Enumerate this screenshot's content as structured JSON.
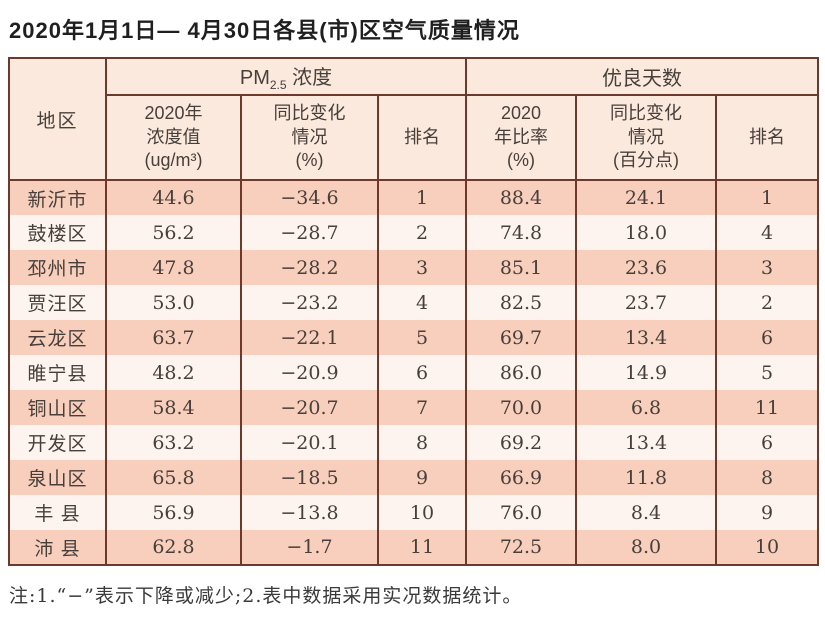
{
  "title": "2020年1月1日— 4月30日各县(市)区空气质量情况",
  "colors": {
    "border": "#6b3a2c",
    "header_bg": "#fae9dc",
    "row_odd_bg": "#f8cebc",
    "row_even_bg": "#fdf3ef",
    "text": "#473f3a"
  },
  "table": {
    "header": {
      "region": "地区",
      "pm_group_prefix": "PM",
      "pm_group_sub": "2.5",
      "pm_group_suffix": " 浓度",
      "good_group": "优良天数",
      "sub": {
        "pm_value": "2020年\n浓度值\n(ug/m³)",
        "pm_change": "同比变化\n情况\n(%)",
        "pm_rank": "排名",
        "good_ratio": "2020\n年比率\n(%)",
        "good_change": "同比变化\n情况\n(百分点)",
        "good_rank": "排名"
      }
    },
    "rows": [
      {
        "region": "新沂市",
        "pm_value": "44.6",
        "pm_change": "−34.6",
        "pm_rank": "1",
        "good_ratio": "88.4",
        "good_change": "24.1",
        "good_rank": "1"
      },
      {
        "region": "鼓楼区",
        "pm_value": "56.2",
        "pm_change": "−28.7",
        "pm_rank": "2",
        "good_ratio": "74.8",
        "good_change": "18.0",
        "good_rank": "4"
      },
      {
        "region": "邳州市",
        "pm_value": "47.8",
        "pm_change": "−28.2",
        "pm_rank": "3",
        "good_ratio": "85.1",
        "good_change": "23.6",
        "good_rank": "3"
      },
      {
        "region": "贾汪区",
        "pm_value": "53.0",
        "pm_change": "−23.2",
        "pm_rank": "4",
        "good_ratio": "82.5",
        "good_change": "23.7",
        "good_rank": "2"
      },
      {
        "region": "云龙区",
        "pm_value": "63.7",
        "pm_change": "−22.1",
        "pm_rank": "5",
        "good_ratio": "69.7",
        "good_change": "13.4",
        "good_rank": "6"
      },
      {
        "region": "睢宁县",
        "pm_value": "48.2",
        "pm_change": "−20.9",
        "pm_rank": "6",
        "good_ratio": "86.0",
        "good_change": "14.9",
        "good_rank": "5"
      },
      {
        "region": "铜山区",
        "pm_value": "58.4",
        "pm_change": "−20.7",
        "pm_rank": "7",
        "good_ratio": "70.0",
        "good_change": "6.8",
        "good_rank": "11"
      },
      {
        "region": "开发区",
        "pm_value": "63.2",
        "pm_change": "−20.1",
        "pm_rank": "8",
        "good_ratio": "69.2",
        "good_change": "13.4",
        "good_rank": "6"
      },
      {
        "region": "泉山区",
        "pm_value": "65.8",
        "pm_change": "−18.5",
        "pm_rank": "9",
        "good_ratio": "66.9",
        "good_change": "11.8",
        "good_rank": "8"
      },
      {
        "region": "丰 县",
        "pm_value": "56.9",
        "pm_change": "−13.8",
        "pm_rank": "10",
        "good_ratio": "76.0",
        "good_change": "8.4",
        "good_rank": "9"
      },
      {
        "region": "沛 县",
        "pm_value": "62.8",
        "pm_change": "−1.7",
        "pm_rank": "11",
        "good_ratio": "72.5",
        "good_change": "8.0",
        "good_rank": "10"
      }
    ]
  },
  "footnote": "注:1.“−”表示下降或减少;2.表中数据采用实况数据统计。"
}
